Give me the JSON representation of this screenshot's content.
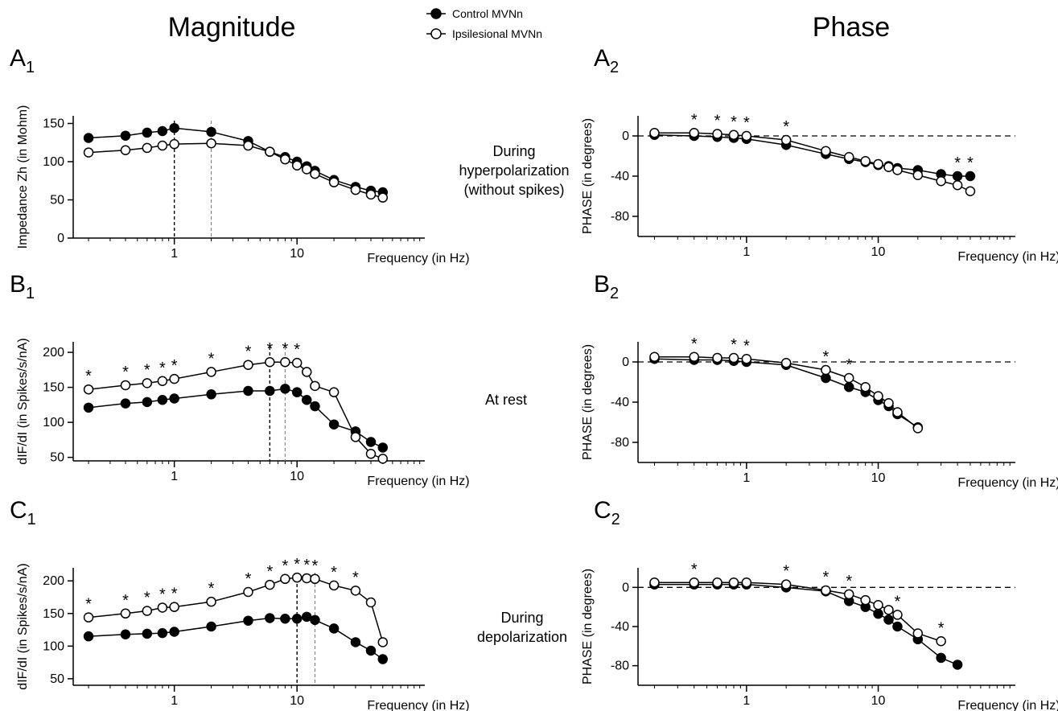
{
  "titles": {
    "left": "Magnitude",
    "right": "Phase"
  },
  "legend": [
    {
      "name": "Control MVNn",
      "marker": "filled"
    },
    {
      "name": "Ipsilesional MVNn",
      "marker": "open"
    }
  ],
  "conditions": [
    {
      "lines": [
        "During",
        "hyperpolarization",
        "(without spikes)"
      ]
    },
    {
      "lines": [
        "At rest"
      ]
    },
    {
      "lines": [
        "During",
        "depolarization"
      ]
    }
  ],
  "colors": {
    "filled": "#000000",
    "open": "#ffffff",
    "stroke": "#000000"
  },
  "chart_data": [
    {
      "id": "A1",
      "label": "A",
      "sub": "1",
      "type": "line",
      "xscale": "log",
      "xlim": [
        0.15,
        110
      ],
      "ylim": [
        0,
        160
      ],
      "xticks": [
        {
          "v": 1,
          "t": "1"
        },
        {
          "v": 10,
          "t": "10"
        }
      ],
      "yticks": [
        {
          "v": 0,
          "t": "0"
        },
        {
          "v": 50,
          "t": "50"
        },
        {
          "v": 100,
          "t": "100"
        },
        {
          "v": 150,
          "t": "150"
        }
      ],
      "xlabel": "Frequency (in Hz)",
      "ylabel": "Impedance Zh (in Mohm)",
      "zero_line": false,
      "vlines": [
        {
          "x": 1,
          "style": "dark"
        },
        {
          "x": 2,
          "style": "light"
        }
      ],
      "series": [
        {
          "name": "Control MVNn",
          "marker": "filled",
          "x": [
            0.2,
            0.4,
            0.6,
            0.8,
            1,
            2,
            4,
            6,
            8,
            10,
            12,
            14,
            20,
            30,
            40,
            50
          ],
          "y": [
            131,
            134,
            138,
            140,
            144,
            139,
            127,
            113,
            106,
            100,
            94,
            88,
            76,
            67,
            62,
            60
          ]
        },
        {
          "name": "Ipsilesional MVNn",
          "marker": "open",
          "x": [
            0.2,
            0.4,
            0.6,
            0.8,
            1,
            2,
            4,
            6,
            8,
            10,
            12,
            14,
            20,
            30,
            40,
            50
          ],
          "y": [
            112,
            115,
            118,
            121,
            123,
            124,
            121,
            113,
            103,
            95,
            90,
            84,
            73,
            63,
            57,
            53
          ]
        }
      ],
      "stars": []
    },
    {
      "id": "A2",
      "label": "A",
      "sub": "2",
      "type": "line",
      "xscale": "log",
      "xlim": [
        0.15,
        110
      ],
      "ylim": [
        -100,
        20
      ],
      "xticks": [
        {
          "v": 1,
          "t": "1"
        },
        {
          "v": 10,
          "t": "10"
        }
      ],
      "yticks": [
        {
          "v": 0,
          "t": "0"
        },
        {
          "v": -40,
          "t": "-40"
        },
        {
          "v": -80,
          "t": "-80"
        }
      ],
      "xlabel": "Frequency (in Hz)",
      "ylabel": "PHASE (in degrees)",
      "zero_line": true,
      "vlines": [],
      "series": [
        {
          "name": "Control MVNn",
          "marker": "filled",
          "x": [
            0.2,
            0.4,
            0.6,
            0.8,
            1,
            2,
            4,
            6,
            8,
            10,
            12,
            14,
            20,
            30,
            40,
            50
          ],
          "y": [
            1,
            0,
            -1,
            -2,
            -3,
            -9,
            -18,
            -23,
            -26,
            -29,
            -30,
            -32,
            -34,
            -38,
            -40,
            -40
          ]
        },
        {
          "name": "Ipsilesional MVNn",
          "marker": "open",
          "x": [
            0.2,
            0.4,
            0.6,
            0.8,
            1,
            2,
            4,
            6,
            8,
            10,
            12,
            14,
            20,
            30,
            40,
            50
          ],
          "y": [
            3,
            3,
            2,
            1,
            0,
            -4,
            -15,
            -21,
            -25,
            -28,
            -31,
            -34,
            -39,
            -45,
            -49,
            -55
          ]
        }
      ],
      "stars": [
        0.4,
        0.6,
        0.8,
        1,
        2,
        40,
        50
      ]
    },
    {
      "id": "B1",
      "label": "B",
      "sub": "1",
      "type": "line",
      "xscale": "log",
      "xlim": [
        0.15,
        110
      ],
      "ylim": [
        45,
        215
      ],
      "xticks": [
        {
          "v": 1,
          "t": "1"
        },
        {
          "v": 10,
          "t": "10"
        }
      ],
      "yticks": [
        {
          "v": 50,
          "t": "50"
        },
        {
          "v": 100,
          "t": "100"
        },
        {
          "v": 150,
          "t": "150"
        },
        {
          "v": 200,
          "t": "200"
        }
      ],
      "xlabel": "Frequency (in Hz)",
      "ylabel": "dIF/dI (in Spikes/s/nA)",
      "zero_line": false,
      "vlines": [
        {
          "x": 6,
          "style": "dark"
        },
        {
          "x": 8,
          "style": "light"
        }
      ],
      "series": [
        {
          "name": "Control MVNn",
          "marker": "filled",
          "x": [
            0.2,
            0.4,
            0.6,
            0.8,
            1,
            2,
            4,
            6,
            8,
            10,
            12,
            14,
            20,
            30,
            40,
            50
          ],
          "y": [
            121,
            127,
            129,
            132,
            134,
            140,
            145,
            145,
            148,
            143,
            132,
            123,
            97,
            87,
            72,
            64
          ]
        },
        {
          "name": "Ipsilesional MVNn",
          "marker": "open",
          "x": [
            0.2,
            0.4,
            0.6,
            0.8,
            1,
            2,
            4,
            6,
            8,
            10,
            12,
            14,
            20,
            30,
            40,
            50
          ],
          "y": [
            147,
            153,
            156,
            159,
            162,
            172,
            182,
            186,
            186,
            185,
            172,
            152,
            143,
            79,
            55,
            48
          ]
        }
      ],
      "stars": [
        0.2,
        0.4,
        0.6,
        0.8,
        1,
        2,
        4,
        6,
        8,
        10
      ]
    },
    {
      "id": "B2",
      "label": "B",
      "sub": "2",
      "type": "line",
      "xscale": "log",
      "xlim": [
        0.15,
        110
      ],
      "ylim": [
        -100,
        20
      ],
      "xticks": [
        {
          "v": 1,
          "t": "1"
        },
        {
          "v": 10,
          "t": "10"
        }
      ],
      "yticks": [
        {
          "v": 0,
          "t": "0"
        },
        {
          "v": -40,
          "t": "-40"
        },
        {
          "v": -80,
          "t": "-80"
        }
      ],
      "xlabel": "Frequency (in Hz)",
      "ylabel": "PHASE (in degrees)",
      "zero_line": true,
      "vlines": [],
      "series": [
        {
          "name": "Control MVNn",
          "marker": "filled",
          "x": [
            0.2,
            0.4,
            0.6,
            0.8,
            1,
            2,
            4,
            6,
            8,
            10,
            12,
            14,
            20
          ],
          "y": [
            3,
            2,
            2,
            1,
            0,
            -3,
            -16,
            -25,
            -30,
            -38,
            -44,
            -52,
            -65
          ]
        },
        {
          "name": "Ipsilesional MVNn",
          "marker": "open",
          "x": [
            0.2,
            0.4,
            0.6,
            0.8,
            1,
            2,
            4,
            6,
            8,
            10,
            12,
            14,
            20
          ],
          "y": [
            5,
            5,
            4,
            4,
            3,
            -1,
            -8,
            -16,
            -25,
            -34,
            -41,
            -50,
            -66
          ]
        }
      ],
      "stars": [
        0.4,
        0.8,
        1,
        4,
        6
      ]
    },
    {
      "id": "C1",
      "label": "C",
      "sub": "1",
      "type": "line",
      "xscale": "log",
      "xlim": [
        0.15,
        110
      ],
      "ylim": [
        40,
        220
      ],
      "xticks": [
        {
          "v": 1,
          "t": "1"
        },
        {
          "v": 10,
          "t": "10"
        }
      ],
      "yticks": [
        {
          "v": 50,
          "t": "50"
        },
        {
          "v": 100,
          "t": "100"
        },
        {
          "v": 150,
          "t": "150"
        },
        {
          "v": 200,
          "t": "200"
        }
      ],
      "xlabel": "Frequency (in Hz)",
      "ylabel": "dIF/dI (in Spikes/s/nA)",
      "zero_line": false,
      "vlines": [
        {
          "x": 10,
          "style": "dark"
        },
        {
          "x": 14,
          "style": "light"
        }
      ],
      "series": [
        {
          "name": "Control MVNn",
          "marker": "filled",
          "x": [
            0.2,
            0.4,
            0.6,
            0.8,
            1,
            2,
            4,
            6,
            8,
            10,
            12,
            14,
            20,
            30,
            40,
            50
          ],
          "y": [
            115,
            118,
            119,
            120,
            122,
            130,
            139,
            143,
            142,
            142,
            145,
            140,
            127,
            106,
            93,
            80
          ]
        },
        {
          "name": "Ipsilesional MVNn",
          "marker": "open",
          "x": [
            0.2,
            0.4,
            0.6,
            0.8,
            1,
            2,
            4,
            6,
            8,
            10,
            12,
            14,
            20,
            30,
            40,
            50
          ],
          "y": [
            144,
            150,
            154,
            159,
            160,
            168,
            183,
            194,
            203,
            205,
            204,
            203,
            193,
            185,
            167,
            106
          ]
        }
      ],
      "stars": [
        0.2,
        0.4,
        0.6,
        0.8,
        1,
        2,
        4,
        6,
        8,
        10,
        12,
        14,
        20,
        30
      ]
    },
    {
      "id": "C2",
      "label": "C",
      "sub": "2",
      "type": "line",
      "xscale": "log",
      "xlim": [
        0.15,
        110
      ],
      "ylim": [
        -100,
        20
      ],
      "xticks": [
        {
          "v": 1,
          "t": "1"
        },
        {
          "v": 10,
          "t": "10"
        }
      ],
      "yticks": [
        {
          "v": 0,
          "t": "0"
        },
        {
          "v": -40,
          "t": "-40"
        },
        {
          "v": -80,
          "t": "-80"
        }
      ],
      "xlabel": "Frequency (in Hz)",
      "ylabel": "PHASE (in degrees)",
      "zero_line": true,
      "vlines": [],
      "series": [
        {
          "name": "Control MVNn",
          "marker": "filled",
          "x": [
            0.2,
            0.4,
            0.6,
            0.8,
            1,
            2,
            4,
            6,
            8,
            10,
            12,
            14,
            20,
            30,
            40
          ],
          "y": [
            3,
            3,
            3,
            3,
            3,
            0,
            -4,
            -14,
            -20,
            -27,
            -33,
            -40,
            -53,
            -72,
            -79
          ]
        },
        {
          "name": "Ipsilesional MVNn",
          "marker": "open",
          "x": [
            0.2,
            0.4,
            0.6,
            0.8,
            1,
            2,
            4,
            6,
            8,
            10,
            12,
            14,
            20,
            30
          ],
          "y": [
            5,
            5,
            5,
            5,
            5,
            3,
            -3,
            -7,
            -13,
            -18,
            -23,
            -28,
            -47,
            -55
          ]
        }
      ],
      "stars": [
        0.4,
        2,
        4,
        6,
        14,
        30
      ]
    }
  ]
}
